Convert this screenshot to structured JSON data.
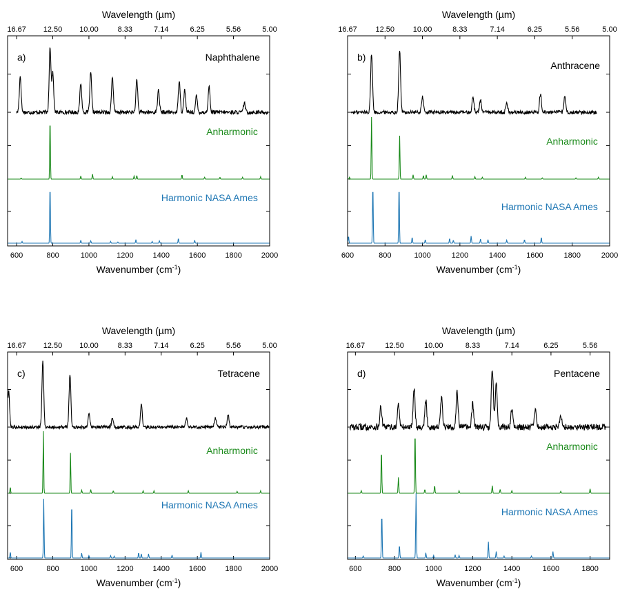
{
  "colors": {
    "experiment": "#000000",
    "anharmonic": "#1a8a1a",
    "harmonic": "#1f77b4",
    "axis": "#000000"
  },
  "chart_data": [
    {
      "type": "line",
      "panel_label": "a)",
      "molecule": "Naphthalene",
      "top_axis_title": "Wavelength (µm)",
      "top_tick_labels": [
        "16.67",
        "12.50",
        "10.00",
        "8.33",
        "7.14",
        "6.25",
        "5.56",
        "5.00"
      ],
      "top_tick_wavenumbers": [
        600,
        800,
        1000,
        1200,
        1400,
        1600,
        1800,
        2000
      ],
      "xlabel": "Wavenumber (cm⁻¹)",
      "xlabel_base": "Wavenumber (cm",
      "xlabel_sup": "-1",
      "xlabel_close": ")",
      "xlim": [
        550,
        2000
      ],
      "x_ticks": [
        600,
        800,
        1000,
        1200,
        1400,
        1600,
        1800,
        2000
      ],
      "x_tick_labels": [
        "600",
        "800",
        "1000",
        "1200",
        "1400",
        "1600",
        "1800",
        "2000"
      ],
      "experiment": {
        "x_range": [
          600,
          1990
        ],
        "noise": 0.06,
        "peaks": [
          [
            620,
            0.55
          ],
          [
            785,
            1.0
          ],
          [
            800,
            0.6
          ],
          [
            955,
            0.45
          ],
          [
            1010,
            0.6
          ],
          [
            1130,
            0.55
          ],
          [
            1265,
            0.5
          ],
          [
            1385,
            0.35
          ],
          [
            1500,
            0.5
          ],
          [
            1530,
            0.35
          ],
          [
            1595,
            0.25
          ],
          [
            1665,
            0.4
          ],
          [
            1860,
            0.15
          ]
        ]
      },
      "series": [
        {
          "name": "Anharmonic",
          "peaks": [
            [
              625,
              0.02
            ],
            [
              785,
              1.0
            ],
            [
              955,
              0.05
            ],
            [
              1020,
              0.08
            ],
            [
              1130,
              0.04
            ],
            [
              1250,
              0.05
            ],
            [
              1265,
              0.06
            ],
            [
              1515,
              0.07
            ],
            [
              1640,
              0.03
            ],
            [
              1725,
              0.03
            ],
            [
              1850,
              0.03
            ],
            [
              1950,
              0.04
            ]
          ]
        },
        {
          "name": "Harmonic NASA Ames",
          "peaks": [
            [
              630,
              0.03
            ],
            [
              785,
              1.0
            ],
            [
              955,
              0.05
            ],
            [
              1010,
              0.04
            ],
            [
              1120,
              0.03
            ],
            [
              1160,
              0.02
            ],
            [
              1260,
              0.06
            ],
            [
              1350,
              0.03
            ],
            [
              1390,
              0.04
            ],
            [
              1495,
              0.08
            ],
            [
              1585,
              0.05
            ]
          ]
        }
      ]
    },
    {
      "type": "line",
      "panel_label": "b)",
      "molecule": "Anthracene",
      "top_axis_title": "Wavelength (µm)",
      "top_tick_labels": [
        "16.67",
        "12.50",
        "10.00",
        "8.33",
        "7.14",
        "6.25",
        "5.56",
        "5.00"
      ],
      "top_tick_wavenumbers": [
        600,
        800,
        1000,
        1200,
        1400,
        1600,
        1800,
        2000
      ],
      "xlabel": "Wavenumber (cm⁻¹)",
      "xlabel_base": "Wavenumber (cm",
      "xlabel_sup": "-1",
      "xlabel_close": ")",
      "xlim": [
        600,
        2000
      ],
      "x_ticks": [
        600,
        800,
        1000,
        1200,
        1400,
        1600,
        1800,
        2000
      ],
      "x_tick_labels": [
        "600",
        "800",
        "1000",
        "1200",
        "1400",
        "1600",
        "1800",
        "2000"
      ],
      "experiment": {
        "x_range": [
          620,
          1930
        ],
        "noise": 0.06,
        "peaks": [
          [
            728,
            0.95
          ],
          [
            878,
            1.0
          ],
          [
            1000,
            0.25
          ],
          [
            1270,
            0.25
          ],
          [
            1310,
            0.2
          ],
          [
            1450,
            0.15
          ],
          [
            1630,
            0.3
          ],
          [
            1760,
            0.25
          ]
        ]
      },
      "series": [
        {
          "name": "Anharmonic",
          "peaks": [
            [
              610,
              0.03
            ],
            [
              728,
              1.0
            ],
            [
              878,
              0.7
            ],
            [
              950,
              0.07
            ],
            [
              1005,
              0.06
            ],
            [
              1020,
              0.07
            ],
            [
              1160,
              0.06
            ],
            [
              1280,
              0.04
            ],
            [
              1320,
              0.03
            ],
            [
              1550,
              0.03
            ],
            [
              1640,
              0.02
            ],
            [
              1820,
              0.02
            ],
            [
              1940,
              0.03
            ]
          ]
        },
        {
          "name": "Harmonic NASA Ames",
          "peaks": [
            [
              605,
              0.12
            ],
            [
              735,
              1.0
            ],
            [
              875,
              1.0
            ],
            [
              945,
              0.1
            ],
            [
              1015,
              0.06
            ],
            [
              1145,
              0.08
            ],
            [
              1165,
              0.05
            ],
            [
              1260,
              0.12
            ],
            [
              1310,
              0.07
            ],
            [
              1350,
              0.06
            ],
            [
              1450,
              0.05
            ],
            [
              1545,
              0.06
            ],
            [
              1635,
              0.1
            ]
          ]
        }
      ]
    },
    {
      "type": "line",
      "panel_label": "c)",
      "molecule": "Tetracene",
      "top_axis_title": "Wavelength (µm)",
      "top_tick_labels": [
        "16.67",
        "12.50",
        "10.00",
        "8.33",
        "7.14",
        "6.25",
        "5.56",
        "5.00"
      ],
      "top_tick_wavenumbers": [
        600,
        800,
        1000,
        1200,
        1400,
        1600,
        1800,
        2000
      ],
      "xlabel": "Wavenumber (cm⁻¹)",
      "xlabel_base": "Wavenumber (cm",
      "xlabel_sup": "-1",
      "xlabel_close": ")",
      "xlim": [
        550,
        2000
      ],
      "x_ticks": [
        600,
        800,
        1000,
        1200,
        1400,
        1600,
        1800,
        2000
      ],
      "x_tick_labels": [
        "600",
        "800",
        "1000",
        "1200",
        "1400",
        "1600",
        "1800",
        "2000"
      ],
      "experiment": {
        "x_range": [
          553,
          1995
        ],
        "noise": 0.05,
        "peaks": [
          [
            556,
            0.55
          ],
          [
            745,
            1.0
          ],
          [
            895,
            0.8
          ],
          [
            1000,
            0.2
          ],
          [
            1130,
            0.15
          ],
          [
            1290,
            0.35
          ],
          [
            1540,
            0.15
          ],
          [
            1700,
            0.15
          ],
          [
            1770,
            0.2
          ]
        ]
      },
      "series": [
        {
          "name": "Anharmonic",
          "peaks": [
            [
              565,
              0.1
            ],
            [
              748,
              1.0
            ],
            [
              898,
              0.65
            ],
            [
              960,
              0.05
            ],
            [
              1010,
              0.06
            ],
            [
              1135,
              0.04
            ],
            [
              1300,
              0.04
            ],
            [
              1360,
              0.04
            ],
            [
              1550,
              0.04
            ],
            [
              1820,
              0.03
            ],
            [
              1950,
              0.04
            ]
          ]
        },
        {
          "name": "Harmonic NASA Ames",
          "peaks": [
            [
              565,
              0.1
            ],
            [
              750,
              1.0
            ],
            [
              905,
              0.95
            ],
            [
              960,
              0.08
            ],
            [
              1000,
              0.04
            ],
            [
              1120,
              0.04
            ],
            [
              1140,
              0.03
            ],
            [
              1275,
              0.09
            ],
            [
              1290,
              0.07
            ],
            [
              1330,
              0.07
            ],
            [
              1460,
              0.05
            ],
            [
              1620,
              0.1
            ]
          ]
        }
      ]
    },
    {
      "type": "line",
      "panel_label": "d)",
      "molecule": "Pentacene",
      "top_axis_title": "Wavelength (µm)",
      "top_tick_labels": [
        "16.67",
        "12.50",
        "10.00",
        "8.33",
        "7.14",
        "6.25",
        "5.56"
      ],
      "top_tick_wavenumbers": [
        600,
        800,
        1000,
        1200,
        1400,
        1600,
        1800
      ],
      "xlabel": "Wavenumber (cm⁻¹)",
      "xlabel_base": "Wavenumber (cm",
      "xlabel_sup": "-1",
      "xlabel_close": ")",
      "xlim": [
        560,
        1900
      ],
      "x_ticks": [
        600,
        800,
        1000,
        1200,
        1400,
        1600,
        1800
      ],
      "x_tick_labels": [
        "600",
        "800",
        "1000",
        "1200",
        "1400",
        "1600",
        "1800"
      ],
      "experiment": {
        "x_range": [
          570,
          1880
        ],
        "noise": 0.1,
        "peaks": [
          [
            730,
            0.3
          ],
          [
            820,
            0.35
          ],
          [
            900,
            0.6
          ],
          [
            960,
            0.4
          ],
          [
            1040,
            0.45
          ],
          [
            1120,
            0.55
          ],
          [
            1200,
            0.35
          ],
          [
            1300,
            0.9
          ],
          [
            1320,
            0.7
          ],
          [
            1400,
            0.3
          ],
          [
            1520,
            0.25
          ],
          [
            1650,
            0.2
          ]
        ]
      },
      "series": [
        {
          "name": "Anharmonic",
          "peaks": [
            [
              630,
              0.04
            ],
            [
              733,
              0.7
            ],
            [
              820,
              0.25
            ],
            [
              905,
              1.0
            ],
            [
              955,
              0.06
            ],
            [
              1005,
              0.12
            ],
            [
              1130,
              0.04
            ],
            [
              1300,
              0.12
            ],
            [
              1340,
              0.06
            ],
            [
              1400,
              0.04
            ],
            [
              1650,
              0.03
            ],
            [
              1800,
              0.07
            ]
          ]
        },
        {
          "name": "Harmonic NASA Ames",
          "peaks": [
            [
              640,
              0.03
            ],
            [
              735,
              0.7
            ],
            [
              825,
              0.2
            ],
            [
              910,
              1.0
            ],
            [
              960,
              0.08
            ],
            [
              1000,
              0.04
            ],
            [
              1110,
              0.05
            ],
            [
              1130,
              0.04
            ],
            [
              1280,
              0.25
            ],
            [
              1320,
              0.1
            ],
            [
              1360,
              0.03
            ],
            [
              1500,
              0.03
            ],
            [
              1610,
              0.1
            ]
          ]
        }
      ]
    }
  ]
}
